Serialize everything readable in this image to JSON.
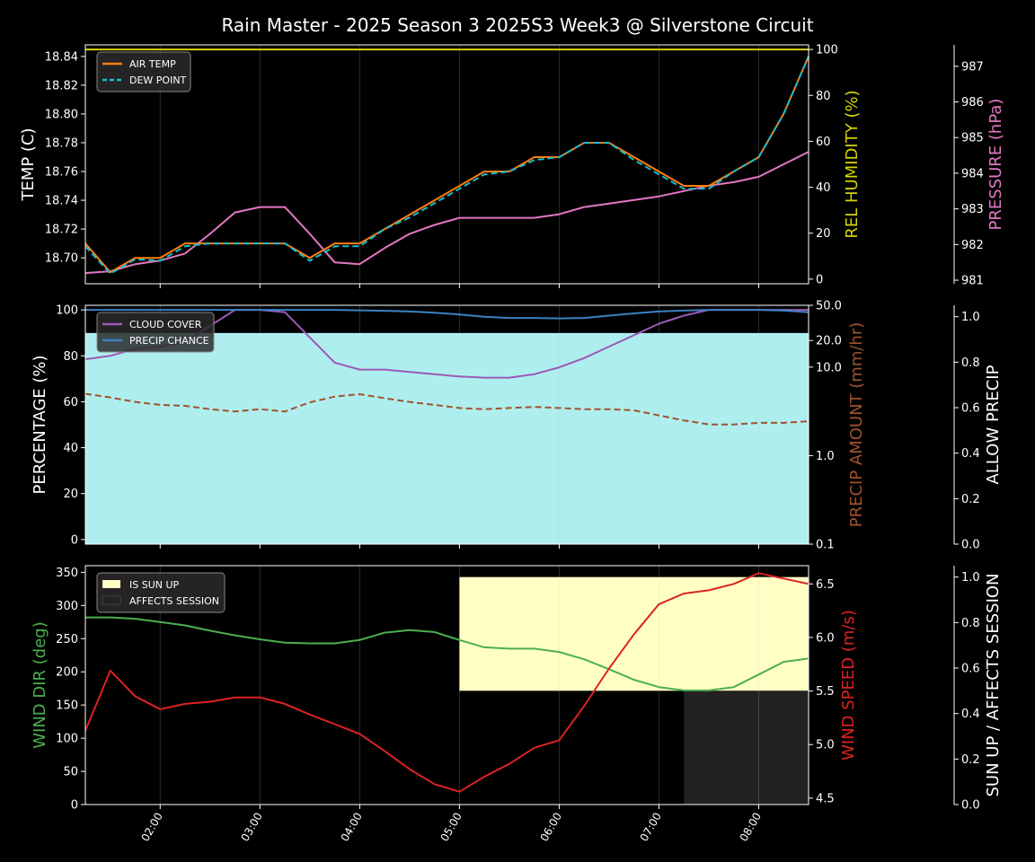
{
  "title": "Rain Master - 2025 Season 3 2025S3 Week3 @ Silverstone Circuit",
  "colors": {
    "air_temp": "#ff7f0e",
    "dew_point": "#17becf",
    "humidity": "#d4d40a",
    "pressure": "#e377c2",
    "cloud": "#9b59b6",
    "precip_chance": "#3b82c4",
    "precip_amount": "#a0522d",
    "allow_precip": "#afeeee",
    "wind_dir": "#4caf50",
    "wind_speed": "#dd2222",
    "sun_up": "#ffffc5",
    "affects": "#222222"
  },
  "x_ticks": [
    "02:00",
    "03:00",
    "04:00",
    "05:00",
    "06:00",
    "07:00",
    "08:00"
  ],
  "chart_data": [
    {
      "type": "line",
      "x": [
        1.25,
        1.5,
        1.75,
        2.0,
        2.25,
        2.5,
        2.75,
        3.0,
        3.25,
        3.5,
        3.75,
        4.0,
        4.25,
        4.5,
        4.75,
        5.0,
        5.25,
        5.5,
        5.75,
        6.0,
        6.25,
        6.5,
        6.75,
        7.0,
        7.25,
        7.5,
        7.75,
        8.0,
        8.25,
        8.5
      ],
      "xlim": [
        1.25,
        8.5
      ],
      "ylabel_left": "TEMP (C)",
      "ylabel_right1": "REL HUMIDITY (%)",
      "ylabel_right2": "PRESSURE (hPa)",
      "ylim_left": [
        18.682,
        18.848
      ],
      "yticks_left": [
        "18.70",
        "18.72",
        "18.74",
        "18.76",
        "18.78",
        "18.80",
        "18.82",
        "18.84"
      ],
      "ylim_right1": [
        -2,
        102
      ],
      "yticks_right1": [
        "0",
        "20",
        "40",
        "60",
        "80",
        "100"
      ],
      "ylim_right2": [
        980.9,
        987.6
      ],
      "yticks_right2": [
        "981",
        "982",
        "983",
        "984",
        "985",
        "986",
        "987"
      ],
      "legend": {
        "air_temp": "AIR TEMP",
        "dew_point": "DEW POINT"
      },
      "series": {
        "air_temp": [
          18.71,
          18.69,
          18.7,
          18.7,
          18.71,
          18.71,
          18.71,
          18.71,
          18.71,
          18.7,
          18.71,
          18.71,
          18.72,
          18.73,
          18.74,
          18.75,
          18.76,
          18.76,
          18.77,
          18.77,
          18.78,
          18.78,
          18.77,
          18.76,
          18.75,
          18.75,
          18.76,
          18.77,
          18.8,
          18.84
        ],
        "dew_point": [
          18.708,
          18.689,
          18.699,
          18.698,
          18.708,
          18.71,
          18.71,
          18.71,
          18.71,
          18.698,
          18.708,
          18.708,
          18.72,
          18.728,
          18.738,
          18.748,
          18.758,
          18.76,
          18.768,
          18.77,
          18.78,
          18.78,
          18.768,
          18.758,
          18.748,
          18.748,
          18.76,
          18.77,
          18.8,
          18.84
        ],
        "humidity": [
          100,
          100,
          100,
          100,
          100,
          100,
          100,
          100,
          100,
          100,
          100,
          100,
          100,
          100,
          100,
          100,
          100,
          100,
          100,
          100,
          100,
          100,
          100,
          100,
          100,
          100,
          100,
          100,
          100,
          100
        ],
        "pressure": [
          981.2,
          981.25,
          981.45,
          981.55,
          981.75,
          982.3,
          982.9,
          983.05,
          983.05,
          982.3,
          981.5,
          981.45,
          981.9,
          982.3,
          982.55,
          982.75,
          982.75,
          982.75,
          982.75,
          982.85,
          983.05,
          983.15,
          983.25,
          983.35,
          983.5,
          983.65,
          983.75,
          983.9,
          984.25,
          984.6
        ]
      }
    },
    {
      "type": "line",
      "ylabel_left": "PERCENTAGE (%)",
      "ylabel_right1": "PRECIP AMOUNT (mm/hr)",
      "ylabel_right2": "ALLOW PRECIP",
      "ylim_left": [
        -2,
        102
      ],
      "yticks_left": [
        "0",
        "20",
        "40",
        "60",
        "80",
        "100"
      ],
      "yscale_right1": "log",
      "ylim_right1": [
        0.1,
        50
      ],
      "yticks_right1": [
        "0.1",
        "1.0",
        "10.0",
        "20.0",
        "50.0"
      ],
      "ylim_right2": [
        0,
        1.05
      ],
      "yticks_right2": [
        "0.0",
        "0.2",
        "0.4",
        "0.6",
        "0.8",
        "1.0"
      ],
      "legend": {
        "cloud": "CLOUD COVER",
        "precip_chance": "PRECIP CHANCE"
      },
      "series": {
        "cloud": [
          78.5,
          80,
          83,
          84,
          86,
          93,
          100,
          100,
          99,
          88,
          77,
          74,
          74,
          73,
          72,
          71,
          70.5,
          70.5,
          72,
          75,
          79,
          84,
          89,
          94,
          97.5,
          100,
          100,
          100,
          100,
          100
        ],
        "precip_chance": [
          100,
          100,
          100,
          100,
          100,
          100,
          100,
          100,
          100,
          100,
          100,
          99.8,
          99.6,
          99.3,
          98.8,
          98,
          97,
          96.5,
          96.5,
          96.3,
          96.5,
          97.5,
          98.5,
          99.3,
          99.7,
          100,
          100,
          100,
          99.7,
          99
        ],
        "precip_amount": [
          5.0,
          4.55,
          4.05,
          3.75,
          3.65,
          3.35,
          3.15,
          3.35,
          3.15,
          4.0,
          4.65,
          4.95,
          4.45,
          4.05,
          3.75,
          3.45,
          3.35,
          3.45,
          3.55,
          3.45,
          3.35,
          3.35,
          3.25,
          2.85,
          2.5,
          2.25,
          2.25,
          2.35,
          2.35,
          2.45
        ],
        "allow_precip": [
          1,
          1,
          1,
          1,
          1,
          1,
          1,
          1,
          1,
          1,
          1,
          1,
          1,
          1,
          1,
          1,
          1,
          1,
          1,
          1,
          1,
          1,
          1,
          1,
          1,
          1,
          1,
          1,
          1,
          1
        ]
      }
    },
    {
      "type": "line",
      "ylabel_left": "WIND DIR (deg)",
      "ylabel_right1": "WIND SPEED (m/s)",
      "ylabel_right2": "SUN UP / AFFECTS SESSION",
      "ylim_left": [
        0,
        360
      ],
      "yticks_left": [
        "0",
        "50",
        "100",
        "150",
        "200",
        "250",
        "300",
        "350"
      ],
      "ylim_right1": [
        4.44,
        6.67
      ],
      "yticks_right1": [
        "4.5",
        "5.0",
        "5.5",
        "6.0",
        "6.5"
      ],
      "ylim_right2": [
        0,
        1.05
      ],
      "yticks_right2": [
        "0.0",
        "0.2",
        "0.4",
        "0.6",
        "0.8",
        "1.0"
      ],
      "legend": {
        "sun_up": "IS SUN UP",
        "affects": "AFFECTS SESSION"
      },
      "sun_up_span": {
        "from": 5.0,
        "to": 8.5,
        "low": 0.5,
        "high": 1.0
      },
      "affects_span": {
        "from": 7.25,
        "to": 8.5,
        "low": 0.0,
        "high": 0.5
      },
      "series": {
        "wind_dir": [
          282,
          282,
          280,
          275,
          270,
          262,
          255,
          249,
          244,
          243,
          243,
          248,
          259,
          263,
          260,
          248,
          237,
          235,
          235,
          230,
          219,
          204,
          188,
          177,
          172,
          172,
          177,
          196,
          215,
          220
        ],
        "wind_speed": [
          5.13,
          5.69,
          5.45,
          5.33,
          5.38,
          5.4,
          5.44,
          5.44,
          5.38,
          5.28,
          5.19,
          5.1,
          4.94,
          4.77,
          4.63,
          4.56,
          4.7,
          4.82,
          4.97,
          5.04,
          5.36,
          5.71,
          6.03,
          6.31,
          6.41,
          6.44,
          6.5,
          6.6,
          6.55,
          6.5
        ]
      }
    }
  ]
}
